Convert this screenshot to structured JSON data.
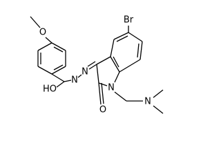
{
  "molecule": {
    "atoms": [
      {
        "label": "O"
      },
      {
        "label": "HO"
      },
      {
        "label": "N"
      },
      {
        "label": "N"
      },
      {
        "label": "O"
      },
      {
        "label": "N"
      },
      {
        "label": "Br"
      },
      {
        "label": "N"
      }
    ]
  }
}
